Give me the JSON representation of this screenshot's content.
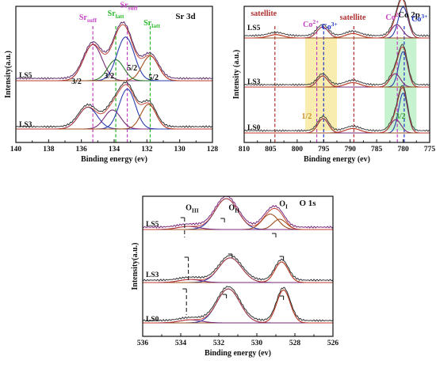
{
  "chart_data": [
    {
      "type": "line",
      "title": "Sr 3d",
      "xlabel": "Binding energy (ev)",
      "ylabel": "Intensity(a.u.)",
      "xlim": [
        140,
        128
      ],
      "x_ticks": [
        140,
        138,
        136,
        134,
        132,
        130,
        128
      ],
      "x_reversed": true,
      "series": [
        {
          "name": "LS5",
          "peaks": [
            {
              "center": 135.3,
              "height": 0.38,
              "width": 0.8,
              "color": "#7a2a7a"
            },
            {
              "center": 133.9,
              "height": 0.22,
              "width": 0.7,
              "color": "#2a7a2a"
            },
            {
              "center": 133.3,
              "height": 0.46,
              "width": 0.75,
              "color": "#2b3fae"
            },
            {
              "center": 131.8,
              "height": 0.26,
              "width": 0.7,
              "color": "#a05020"
            }
          ]
        },
        {
          "name": "LS3",
          "peaks": [
            {
              "center": 135.6,
              "height": 0.23,
              "width": 0.8,
              "color": "#2b3fae"
            },
            {
              "center": 134.1,
              "height": 0.2,
              "width": 0.7,
              "color": "#7a2a7a"
            },
            {
              "center": 133.2,
              "height": 0.42,
              "width": 0.7,
              "color": "#2b3fae"
            },
            {
              "center": 131.9,
              "height": 0.26,
              "width": 0.65,
              "color": "#a05020"
            }
          ]
        }
      ],
      "reference_lines": [
        {
          "x": 135.3,
          "color": "#c33fc3"
        },
        {
          "x": 133.9,
          "color": "#26b726"
        },
        {
          "x": 133.2,
          "color": "#c33fc3"
        },
        {
          "x": 131.8,
          "color": "#26b726"
        }
      ],
      "annotations": [
        {
          "text": "Sr",
          "sub": "suff",
          "color": "#c33fc3",
          "x": 135.6,
          "level": 0.9
        },
        {
          "text": "Sr",
          "sub": "latt",
          "color": "#26b726",
          "x": 133.9,
          "level": 0.93
        },
        {
          "text": "Sr",
          "sub": "suff",
          "color": "#c33fc3",
          "x": 133.1,
          "level": 0.99
        },
        {
          "text": "Sr",
          "sub": "latt",
          "color": "#26b726",
          "x": 131.7,
          "level": 0.86
        },
        {
          "text": "3/2",
          "color": "#111111",
          "x": 136.3,
          "level": 0.43
        },
        {
          "text": "3/2",
          "color": "#111111",
          "x": 134.3,
          "level": 0.47
        },
        {
          "text": "5/2",
          "color": "#111111",
          "x": 132.9,
          "level": 0.53
        },
        {
          "text": "5/2",
          "color": "#111111",
          "x": 131.6,
          "level": 0.46
        }
      ]
    },
    {
      "type": "line",
      "title": "Co 2p",
      "xlabel": "Binding energy (ev)",
      "ylabel": "Intensity (a.u.)",
      "xlim": [
        810,
        775
      ],
      "x_ticks": [
        810,
        805,
        800,
        795,
        790,
        785,
        780,
        775
      ],
      "x_reversed": true,
      "series": [
        {
          "name": "LS5",
          "peaks": [
            {
              "center": 795.2,
              "height": 0.1,
              "width": 1.5,
              "color": "#2b3fae"
            },
            {
              "center": 780.0,
              "height": 0.28,
              "width": 1.3,
              "color": "#2b3fae"
            },
            {
              "center": 781.2,
              "height": 0.12,
              "width": 1.5,
              "color": "#7a2a7a"
            },
            {
              "center": 789.5,
              "height": 0.04,
              "width": 2.0,
              "color": "#a05020"
            },
            {
              "center": 804.0,
              "height": 0.03,
              "width": 2.0,
              "color": "#a05020"
            }
          ]
        },
        {
          "name": "LS3",
          "peaks": [
            {
              "center": 795.2,
              "height": 0.1,
              "width": 1.4,
              "color": "#2b3fae"
            },
            {
              "center": 780.0,
              "height": 0.32,
              "width": 1.2,
              "color": "#2b3fae"
            },
            {
              "center": 781.5,
              "height": 0.12,
              "width": 1.4,
              "color": "#7a2a7a"
            },
            {
              "center": 789.5,
              "height": 0.04,
              "width": 2.0,
              "color": "#a05020"
            }
          ]
        },
        {
          "name": "LS0",
          "peaks": [
            {
              "center": 795.1,
              "height": 0.13,
              "width": 1.4,
              "color": "#2b3fae"
            },
            {
              "center": 780.0,
              "height": 0.36,
              "width": 1.2,
              "color": "#2b3fae"
            },
            {
              "center": 781.4,
              "height": 0.12,
              "width": 1.4,
              "color": "#7a2a7a"
            },
            {
              "center": 789.5,
              "height": 0.04,
              "width": 2.0,
              "color": "#a05020"
            }
          ]
        }
      ],
      "bands": [
        {
          "from": 798.5,
          "to": 792.5,
          "color": "#f7eaa0",
          "label": "1/2",
          "label_color": "#c8902a"
        },
        {
          "from": 783.5,
          "to": 777.5,
          "color": "#bdf0c7",
          "label": "3/2",
          "label_color": "#3aa33a"
        }
      ],
      "reference_lines": [
        {
          "x": 804.2,
          "color": "#b03030"
        },
        {
          "x": 796.3,
          "color": "#c33fc3"
        },
        {
          "x": 795.0,
          "color": "#1e36c8"
        },
        {
          "x": 789.3,
          "color": "#b03030"
        },
        {
          "x": 781.1,
          "color": "#c33fc3"
        },
        {
          "x": 779.8,
          "color": "#1e36c8"
        }
      ],
      "annotations": [
        {
          "text": "satellite",
          "color": "#b03030",
          "x": 806.3,
          "level": 0.93
        },
        {
          "text": "Co",
          "sup": "2+",
          "color": "#c33fc3",
          "x": 797.4,
          "level": 0.85
        },
        {
          "text": "Co",
          "sup": "3+",
          "color": "#1e36c8",
          "x": 793.9,
          "level": 0.83
        },
        {
          "text": "satellite",
          "color": "#b03030",
          "x": 789.5,
          "level": 0.9
        },
        {
          "text": "Co",
          "sup": "2+",
          "color": "#c33fc3",
          "x": 781.8,
          "level": 0.9
        },
        {
          "text": "Co",
          "sup": "3+",
          "color": "#1e36c8",
          "x": 776.9,
          "level": 0.89
        }
      ]
    },
    {
      "type": "line",
      "title": "O 1s",
      "xlabel": "Binding energy (ev)",
      "ylabel": "Intensity(a.u.)",
      "xlim": [
        536,
        526
      ],
      "x_ticks": [
        536,
        534,
        532,
        530,
        528,
        526
      ],
      "x_reversed": true,
      "series": [
        {
          "name": "LS5",
          "peaks": [
            {
              "center": 531.6,
              "height": 0.3,
              "width": 0.85,
              "color": "#2b3fae"
            },
            {
              "center": 529.3,
              "height": 0.15,
              "width": 0.6,
              "color": "#a05020"
            },
            {
              "center": 528.8,
              "height": 0.1,
              "width": 0.5,
              "color": "#a05020"
            },
            {
              "center": 533.6,
              "height": 0.03,
              "width": 0.8,
              "color": "#7a2a7a"
            }
          ]
        },
        {
          "name": "LS3",
          "peaks": [
            {
              "center": 531.4,
              "height": 0.24,
              "width": 0.85,
              "color": "#2b3fae"
            },
            {
              "center": 528.7,
              "height": 0.2,
              "width": 0.5,
              "color": "#a05020"
            },
            {
              "center": 533.5,
              "height": 0.03,
              "width": 0.8,
              "color": "#7a2a7a"
            }
          ]
        },
        {
          "name": "LS0",
          "peaks": [
            {
              "center": 531.5,
              "height": 0.33,
              "width": 0.85,
              "color": "#2b3fae"
            },
            {
              "center": 528.6,
              "height": 0.32,
              "width": 0.5,
              "color": "#a05020"
            },
            {
              "center": 533.5,
              "height": 0.03,
              "width": 0.8,
              "color": "#7a2a7a"
            }
          ]
        }
      ],
      "annotations": [
        {
          "text": "O",
          "sub": "III",
          "color": "#111111",
          "x": 533.4,
          "level": 0.9
        },
        {
          "text": "O",
          "sub": "II",
          "color": "#111111",
          "x": 531.2,
          "level": 0.9
        },
        {
          "text": "O",
          "sub": "I",
          "color": "#111111",
          "x": 528.6,
          "level": 0.93
        }
      ]
    }
  ]
}
